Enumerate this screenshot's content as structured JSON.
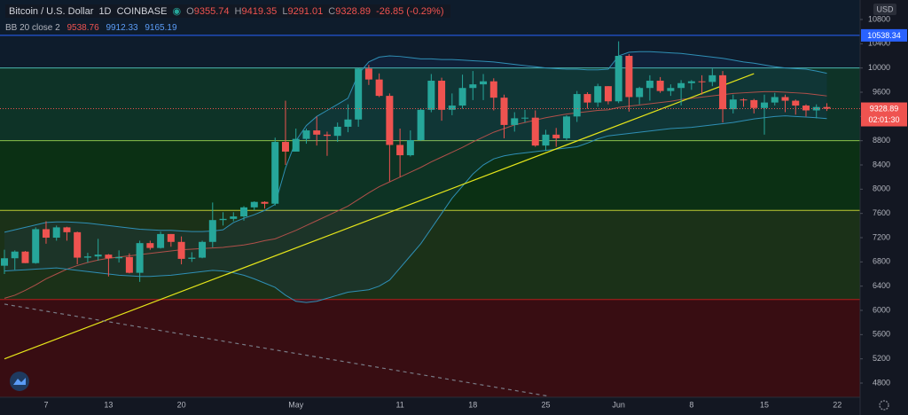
{
  "header": {
    "symbol": "Bitcoin / U.S. Dollar",
    "interval": "1D",
    "exchange": "COINBASE",
    "ohlc_labels": [
      "O",
      "H",
      "L",
      "C"
    ],
    "change": "-26.85 (-0.29%)",
    "indicator": "BB 20 close 2",
    "currency": "USD",
    "countdown": "02:01:30"
  },
  "chart_data": {
    "type": "candlestick",
    "categories": [
      null,
      null,
      null,
      null,
      "7",
      null,
      null,
      null,
      null,
      null,
      "13",
      null,
      null,
      null,
      null,
      null,
      null,
      "20",
      null,
      null,
      null,
      null,
      null,
      null,
      null,
      null,
      null,
      null,
      "May",
      null,
      null,
      null,
      null,
      null,
      null,
      null,
      null,
      null,
      "11",
      null,
      null,
      null,
      null,
      null,
      null,
      "18",
      null,
      null,
      null,
      null,
      null,
      null,
      "25",
      null,
      null,
      null,
      null,
      null,
      null,
      "Jun",
      null,
      null,
      null,
      null,
      null,
      null,
      "8",
      null,
      null,
      null,
      null,
      null,
      null,
      "15",
      null,
      null,
      null,
      null,
      null,
      null,
      "22"
    ],
    "open": [
      6737,
      6860,
      6970,
      6780,
      7340,
      7200,
      7370,
      7290,
      6870,
      6890,
      6920,
      6860,
      6880,
      6620,
      7110,
      7030,
      7260,
      7130,
      6850,
      6870,
      7130,
      7490,
      7510,
      7550,
      7700,
      7790,
      7760,
      8780,
      8620,
      8830,
      8970,
      8900,
      8880,
      9030,
      9150,
      9990,
      9810,
      9540,
      8730,
      8560,
      8810,
      9310,
      9790,
      9310,
      9380,
      9670,
      9730,
      9780,
      9510,
      9060,
      9170,
      9180,
      8720,
      8900,
      8840,
      9200,
      9570,
      9430,
      9700,
      9450,
      10200,
      9520,
      9670,
      9790,
      9620,
      9670,
      9750,
      9780,
      9770,
      9880,
      9320,
      9480,
      9470,
      9340,
      9430,
      9520,
      9460,
      9380,
      9300,
      9355.74,
      null
    ],
    "high": [
      7000,
      6990,
      6980,
      7370,
      7470,
      7400,
      7380,
      7300,
      6950,
      7180,
      6930,
      6990,
      6940,
      7150,
      7150,
      7300,
      7260,
      7220,
      6960,
      7150,
      7780,
      7620,
      7620,
      7720,
      7800,
      7800,
      8850,
      9460,
      9000,
      9000,
      9200,
      8950,
      9100,
      9400,
      10000,
      10050,
      9910,
      9580,
      9000,
      8970,
      9330,
      9900,
      9840,
      9580,
      9890,
      9950,
      9900,
      9830,
      9560,
      9270,
      9310,
      9300,
      8980,
      9010,
      9220,
      9620,
      9600,
      9740,
      9700,
      10440,
      10230,
      9690,
      9880,
      9850,
      9730,
      9800,
      9800,
      9880,
      9990,
      9950,
      9560,
      9500,
      9490,
      9560,
      9590,
      9560,
      9480,
      9400,
      9400,
      9419.35,
      null
    ],
    "low": [
      6600,
      6670,
      6780,
      6770,
      7100,
      7150,
      7150,
      6760,
      6790,
      6820,
      6560,
      6790,
      6610,
      6470,
      7000,
      7020,
      7050,
      6760,
      6800,
      6860,
      7040,
      7400,
      7470,
      7480,
      7650,
      7680,
      7730,
      8400,
      8620,
      8750,
      8720,
      8550,
      8780,
      8940,
      9030,
      9720,
      9520,
      8130,
      8200,
      8540,
      8800,
      9270,
      9130,
      9220,
      9330,
      9470,
      9470,
      9300,
      8840,
      8950,
      9100,
      8700,
      8630,
      8700,
      8810,
      9110,
      9330,
      9360,
      9400,
      9420,
      9280,
      9400,
      9460,
      9590,
      9540,
      9380,
      9640,
      9560,
      9700,
      9100,
      9250,
      9360,
      9250,
      8900,
      9380,
      9270,
      9230,
      9200,
      9170,
      9291.01,
      null
    ],
    "close": [
      6860,
      6970,
      6780,
      7340,
      7200,
      7370,
      7290,
      6870,
      6890,
      6920,
      6860,
      6880,
      6620,
      7110,
      7030,
      7260,
      7130,
      6850,
      6870,
      7130,
      7490,
      7510,
      7550,
      7700,
      7790,
      7760,
      8780,
      8620,
      8830,
      8970,
      8900,
      8880,
      9030,
      9150,
      9990,
      9810,
      9540,
      8730,
      8560,
      8810,
      9310,
      9790,
      9310,
      9380,
      9670,
      9730,
      9780,
      9510,
      9060,
      9170,
      9180,
      8720,
      8900,
      8840,
      9200,
      9570,
      9430,
      9700,
      9450,
      10200,
      9520,
      9670,
      9790,
      9620,
      9670,
      9750,
      9780,
      9770,
      9880,
      9320,
      9480,
      9470,
      9340,
      9430,
      9520,
      9460,
      9380,
      9300,
      9355.74,
      9328.89,
      null
    ],
    "up_color": "#26a69a",
    "down_color": "#ef5350",
    "bands": {
      "upper": [
        7290,
        7330,
        7370,
        7410,
        7450,
        7460,
        7460,
        7450,
        7440,
        7420,
        7400,
        7380,
        7360,
        7340,
        7330,
        7320,
        7320,
        7310,
        7300,
        7300,
        7310,
        7330,
        7450,
        7520,
        7580,
        7650,
        7750,
        8350,
        8800,
        9050,
        9200,
        9300,
        9400,
        9500,
        9900,
        10100,
        10180,
        10200,
        10190,
        10170,
        10150,
        10150,
        10140,
        10140,
        10130,
        10120,
        10110,
        10100,
        10080,
        10060,
        10040,
        10020,
        10000,
        9990,
        9980,
        9980,
        9970,
        9970,
        9980,
        10200,
        10260,
        10270,
        10270,
        10260,
        10250,
        10240,
        10220,
        10200,
        10180,
        10160,
        10130,
        10100,
        10080,
        10050,
        10020,
        10000,
        9990,
        9980,
        9950,
        9912.33,
        null
      ],
      "middle": [
        6200,
        6250,
        6330,
        6420,
        6520,
        6600,
        6680,
        6740,
        6790,
        6830,
        6860,
        6880,
        6900,
        6920,
        6940,
        6960,
        6980,
        7000,
        7010,
        7020,
        7030,
        7040,
        7060,
        7080,
        7110,
        7150,
        7180,
        7250,
        7320,
        7400,
        7480,
        7560,
        7640,
        7720,
        7830,
        7940,
        8040,
        8120,
        8200,
        8280,
        8360,
        8450,
        8530,
        8610,
        8690,
        8780,
        8860,
        8940,
        9000,
        9060,
        9100,
        9140,
        9180,
        9210,
        9240,
        9260,
        9280,
        9300,
        9310,
        9350,
        9370,
        9390,
        9410,
        9430,
        9450,
        9480,
        9500,
        9520,
        9540,
        9560,
        9580,
        9590,
        9600,
        9610,
        9610,
        9600,
        9590,
        9580,
        9560,
        9538.76,
        null
      ],
      "lower": [
        6650,
        6660,
        6670,
        6680,
        6690,
        6700,
        6680,
        6660,
        6640,
        6620,
        6600,
        6580,
        6570,
        6560,
        6560,
        6570,
        6580,
        6600,
        6620,
        6640,
        6660,
        6650,
        6620,
        6580,
        6520,
        6450,
        6380,
        6250,
        6150,
        6130,
        6150,
        6200,
        6250,
        6300,
        6320,
        6340,
        6400,
        6500,
        6700,
        6900,
        7100,
        7350,
        7600,
        7850,
        8050,
        8250,
        8400,
        8500,
        8550,
        8580,
        8600,
        8620,
        8640,
        8660,
        8680,
        8700,
        8760,
        8830,
        8880,
        8900,
        8920,
        8940,
        8960,
        8980,
        9000,
        9010,
        9020,
        9040,
        9060,
        9080,
        9100,
        9130,
        9160,
        9180,
        9200,
        9210,
        9200,
        9190,
        9180,
        9165.19,
        null
      ],
      "band_color": "#2f8fb5",
      "middle_color": "#b0504a",
      "fill": "rgba(41,98,255,0.07)"
    },
    "zones": [
      {
        "from": 10000,
        "to": 11122,
        "color": "#0e1c2c"
      },
      {
        "from": 8800,
        "to": 10000,
        "color": "#0e3327"
      },
      {
        "from": 7650,
        "to": 8800,
        "color": "#0b3014"
      },
      {
        "from": 6180,
        "to": 7650,
        "color": "#1b3118"
      },
      {
        "from": 4566,
        "to": 6180,
        "color": "#380d12"
      }
    ],
    "levels": [
      {
        "value": 10538.34,
        "color": "#2962ff"
      },
      {
        "value": 10000,
        "color": "#4db6ac"
      },
      {
        "value": 8800,
        "color": "#8bc34a"
      },
      {
        "value": 7650,
        "color": "#c0ca33"
      },
      {
        "value": 6180,
        "color": "#b71c1c"
      }
    ],
    "trend_lines": [
      {
        "x": [
          0,
          72
        ],
        "y": [
          5200,
          9907
        ],
        "color": "#e6e61a",
        "dashed": false
      },
      {
        "x": [
          0,
          52.4
        ],
        "y": [
          6103,
          4580
        ],
        "color": "#787b86",
        "dashed": true
      }
    ],
    "ylim": [
      4566,
      11122
    ],
    "yticks": [
      4800,
      5200,
      5600,
      6000,
      6400,
      6800,
      7200,
      7600,
      8000,
      8400,
      8800,
      9200,
      9600,
      10000,
      10400,
      10800
    ]
  }
}
